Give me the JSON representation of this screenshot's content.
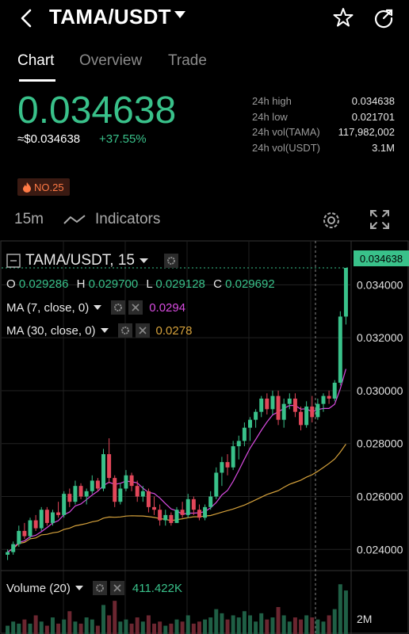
{
  "header": {
    "title": "TAMA/USDT"
  },
  "tabs": [
    {
      "label": "Chart",
      "active": true
    },
    {
      "label": "Overview",
      "active": false
    },
    {
      "label": "Trade",
      "active": false
    }
  ],
  "price": {
    "last": "0.034638",
    "usd": "≈$0.034638",
    "change": "+37.55%"
  },
  "stats": [
    {
      "label": "24h high",
      "value": "0.034638"
    },
    {
      "label": "24h low",
      "value": "0.021701"
    },
    {
      "label": "24h vol(TAMA)",
      "value": "117,982,002"
    },
    {
      "label": "24h vol(USDT)",
      "value": "3.1M"
    }
  ],
  "badge": {
    "label": "NO.25"
  },
  "toolbar": {
    "interval": "15m",
    "indicators": "Indicators"
  },
  "chart_legend": {
    "symbol": "TAMA/USDT, 15",
    "o_label": "O",
    "o": "0.029286",
    "h_label": "H",
    "h": "0.029700",
    "l_label": "L",
    "l": "0.029128",
    "c_label": "C",
    "c": "0.029692",
    "ma7_label": "MA (7, close, 0)",
    "ma7_value": "0.0294",
    "ma30_label": "MA (30, close, 0)",
    "ma30_value": "0.0278",
    "volume_label": "Volume (20)",
    "volume_value": "411.422K",
    "last_price_tag": "0.034638"
  },
  "colors": {
    "up": "#39c18a",
    "down": "#e2475a",
    "ma7": "#d84be0",
    "ma30": "#d6a23c",
    "badge": "#ff7a45"
  },
  "chart_data": {
    "type": "candlestick",
    "y_ticks": [
      "0.034000",
      "0.032000",
      "0.030000",
      "0.028000",
      "0.026000",
      "0.024000"
    ],
    "ylim": [
      0.0232,
      0.035
    ],
    "volume_ticks": [
      "2M"
    ],
    "candles": [
      [
        0.0238,
        0.024,
        0.0236,
        0.0239
      ],
      [
        0.0239,
        0.0243,
        0.0238,
        0.0242
      ],
      [
        0.0242,
        0.0249,
        0.0241,
        0.0247
      ],
      [
        0.0247,
        0.025,
        0.0244,
        0.0245
      ],
      [
        0.0245,
        0.0252,
        0.0244,
        0.0251
      ],
      [
        0.0251,
        0.0253,
        0.0247,
        0.0248
      ],
      [
        0.0248,
        0.0256,
        0.0247,
        0.0255
      ],
      [
        0.0255,
        0.0256,
        0.0249,
        0.025
      ],
      [
        0.025,
        0.0255,
        0.0249,
        0.0254
      ],
      [
        0.0254,
        0.0258,
        0.0252,
        0.0253
      ],
      [
        0.0253,
        0.0262,
        0.0252,
        0.0261
      ],
      [
        0.0261,
        0.0263,
        0.0256,
        0.0258
      ],
      [
        0.0258,
        0.0266,
        0.0257,
        0.0264
      ],
      [
        0.0264,
        0.0265,
        0.0259,
        0.026
      ],
      [
        0.026,
        0.0263,
        0.0257,
        0.0262
      ],
      [
        0.0262,
        0.0268,
        0.0261,
        0.0266
      ],
      [
        0.0266,
        0.0267,
        0.0262,
        0.0263
      ],
      [
        0.0263,
        0.0278,
        0.0262,
        0.0276
      ],
      [
        0.0276,
        0.0282,
        0.0265,
        0.0267
      ],
      [
        0.0267,
        0.0268,
        0.0256,
        0.0258
      ],
      [
        0.0258,
        0.0265,
        0.0257,
        0.0263
      ],
      [
        0.0263,
        0.027,
        0.0262,
        0.0268
      ],
      [
        0.0268,
        0.0269,
        0.0262,
        0.0264
      ],
      [
        0.0264,
        0.0266,
        0.0258,
        0.026
      ],
      [
        0.026,
        0.0264,
        0.0258,
        0.0262
      ],
      [
        0.0262,
        0.0263,
        0.0254,
        0.0256
      ],
      [
        0.0256,
        0.026,
        0.0253,
        0.0255
      ],
      [
        0.0255,
        0.0257,
        0.0249,
        0.0251
      ],
      [
        0.0251,
        0.0255,
        0.0249,
        0.0253
      ],
      [
        0.0253,
        0.0254,
        0.0249,
        0.025
      ],
      [
        0.025,
        0.0256,
        0.025,
        0.0255
      ],
      [
        0.0255,
        0.0258,
        0.0252,
        0.0253
      ],
      [
        0.0253,
        0.0261,
        0.0252,
        0.0259
      ],
      [
        0.0259,
        0.026,
        0.0253,
        0.0255
      ],
      [
        0.0255,
        0.0257,
        0.0251,
        0.0252
      ],
      [
        0.0252,
        0.0257,
        0.0251,
        0.0256
      ],
      [
        0.0256,
        0.0262,
        0.0255,
        0.026
      ],
      [
        0.026,
        0.0271,
        0.0259,
        0.0269
      ],
      [
        0.0269,
        0.0275,
        0.0264,
        0.0273
      ],
      [
        0.0273,
        0.0276,
        0.0268,
        0.0271
      ],
      [
        0.0271,
        0.0281,
        0.027,
        0.0279
      ],
      [
        0.0279,
        0.0283,
        0.0274,
        0.0281
      ],
      [
        0.0281,
        0.0288,
        0.0279,
        0.0286
      ],
      [
        0.0286,
        0.029,
        0.0281,
        0.0289
      ],
      [
        0.0289,
        0.0293,
        0.0286,
        0.0292
      ],
      [
        0.0292,
        0.0298,
        0.029,
        0.0297
      ],
      [
        0.0297,
        0.0299,
        0.0291,
        0.0293
      ],
      [
        0.0293,
        0.03,
        0.0291,
        0.0298
      ],
      [
        0.0298,
        0.03,
        0.0287,
        0.0289
      ],
      [
        0.0289,
        0.0297,
        0.0286,
        0.0295
      ],
      [
        0.0295,
        0.0299,
        0.0293,
        0.0297
      ],
      [
        0.0297,
        0.0299,
        0.029,
        0.0292
      ],
      [
        0.0292,
        0.0294,
        0.0285,
        0.0287
      ],
      [
        0.0287,
        0.0296,
        0.0286,
        0.0294
      ],
      [
        0.0294,
        0.0298,
        0.0288,
        0.029
      ],
      [
        0.029,
        0.0297,
        0.0289,
        0.0295
      ],
      [
        0.0295,
        0.0299,
        0.0292,
        0.0298
      ],
      [
        0.0298,
        0.03,
        0.0295,
        0.0297
      ],
      [
        0.0297,
        0.0304,
        0.0296,
        0.0303
      ],
      [
        0.0303,
        0.033,
        0.0302,
        0.0328
      ],
      [
        0.0328,
        0.03464,
        0.0325,
        0.03464
      ]
    ],
    "volumes": [
      0.4,
      0.6,
      0.5,
      0.7,
      0.5,
      0.9,
      0.6,
      0.4,
      0.8,
      0.5,
      0.7,
      1.1,
      0.6,
      0.5,
      0.8,
      0.7,
      0.4,
      1.4,
      0.9,
      1.6,
      0.6,
      0.7,
      0.5,
      0.8,
      0.6,
      0.9,
      0.5,
      0.6,
      0.4,
      0.5,
      0.7,
      0.6,
      0.9,
      0.5,
      0.6,
      0.7,
      0.8,
      1.2,
      1.0,
      0.7,
      0.9,
      0.8,
      1.1,
      0.9,
      0.6,
      1.0,
      0.7,
      0.8,
      1.3,
      0.9,
      0.6,
      0.8,
      0.7,
      0.9,
      0.8,
      0.7,
      0.6,
      0.9,
      1.2,
      2.4,
      2.1
    ]
  }
}
